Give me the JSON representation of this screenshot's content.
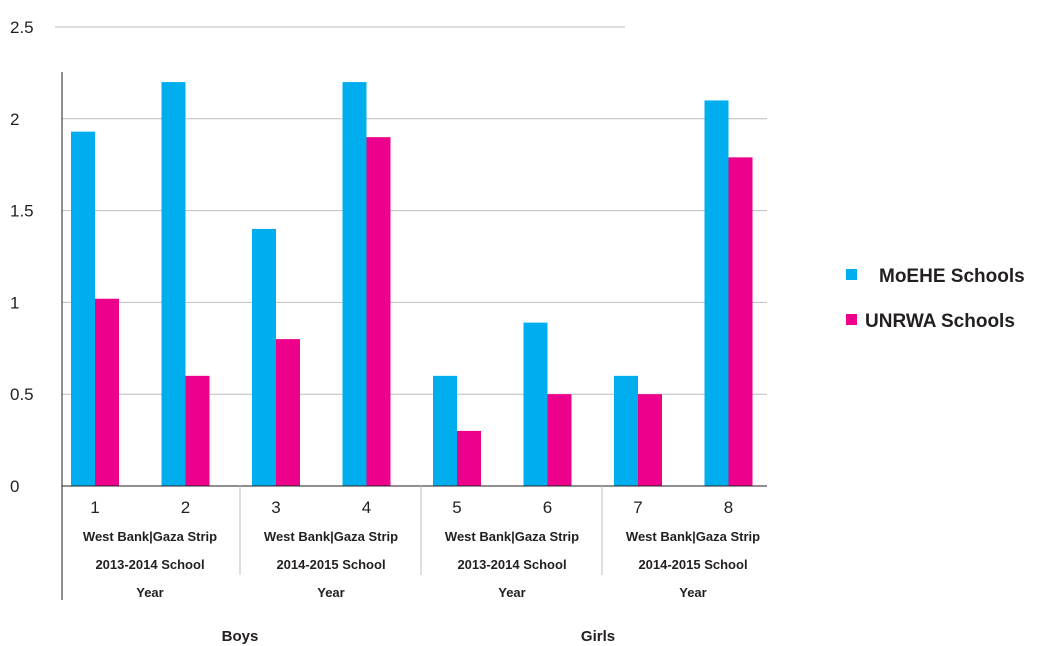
{
  "chart_data": {
    "type": "bar",
    "categories": [
      "1",
      "2",
      "3",
      "4",
      "5",
      "6",
      "7",
      "8"
    ],
    "series": [
      {
        "name": "MoEHE Schools",
        "values": [
          1.93,
          2.2,
          1.4,
          2.2,
          0.6,
          0.89,
          0.6,
          2.1
        ]
      },
      {
        "name": "UNRWA Schools",
        "values": [
          1.02,
          0.6,
          0.8,
          1.9,
          0.3,
          0.5,
          0.5,
          1.79
        ]
      }
    ],
    "y_ticks": [
      "0",
      "0.5",
      "1",
      "1.5",
      "2",
      "2.5"
    ],
    "ylim": [
      0,
      2.5
    ],
    "region_labels": [
      "West Bank|Gaza Strip",
      "West Bank|Gaza Strip",
      "West Bank|Gaza Strip",
      "West Bank|Gaza Strip"
    ],
    "year_labels_line1": [
      "2013-2014 School",
      "2014-2015 School",
      "2013-2014 School",
      "2014-2015 School"
    ],
    "year_labels_line2": [
      "Year",
      "Year",
      "Year",
      "Year"
    ],
    "group_labels": [
      "Boys",
      "Girls"
    ],
    "legend_position": "right",
    "grid": true,
    "colors": {
      "moehe": "#00aeef",
      "unrwa": "#ec008c",
      "grid": "#bcbec0",
      "axis": "#231f20",
      "text": "#231f20"
    }
  }
}
